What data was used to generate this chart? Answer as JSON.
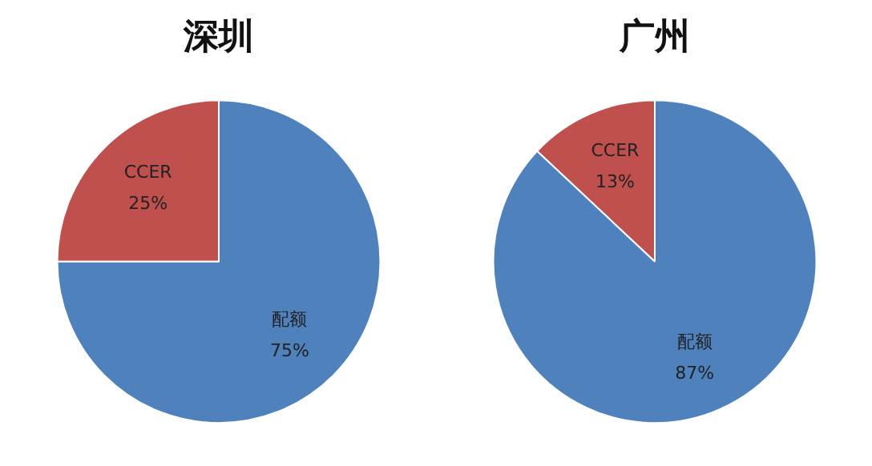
{
  "chart_data": [
    {
      "type": "pie",
      "title": "深圳",
      "categories": [
        "CCER",
        "配额"
      ],
      "values": [
        25,
        75
      ],
      "colors": [
        "#c0504d",
        "#4f81bd"
      ],
      "value_labels": [
        "25%",
        "75%"
      ]
    },
    {
      "type": "pie",
      "title": "广州",
      "categories": [
        "CCER",
        "配额"
      ],
      "values": [
        13,
        87
      ],
      "colors": [
        "#c0504d",
        "#4f81bd"
      ],
      "value_labels": [
        "13%",
        "87%"
      ]
    }
  ]
}
